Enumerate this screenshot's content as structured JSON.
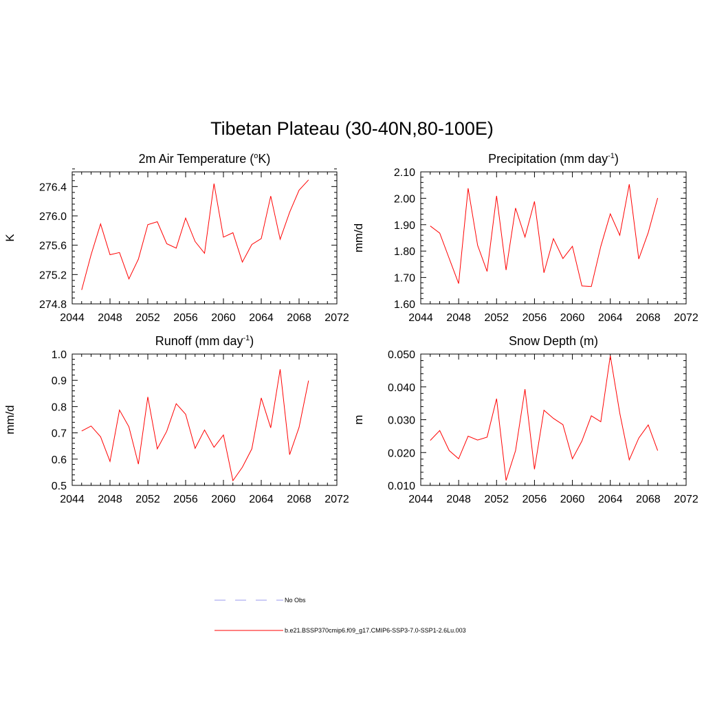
{
  "figure": {
    "title": "Tibetan Plateau (30-40N,80-100E)"
  },
  "chart_data": [
    {
      "type": "line",
      "title": "2m Air Temperature (",
      "title_sup": "o",
      "title_after": "K)",
      "ylabel": "K",
      "xlim": [
        2044,
        2072
      ],
      "ylim": [
        274.8,
        276.6
      ],
      "xticks": [
        2044,
        2048,
        2052,
        2056,
        2060,
        2064,
        2068,
        2072
      ],
      "yticks": [
        274.8,
        275.2,
        275.6,
        276.0,
        276.4
      ],
      "ytick_labels": [
        "274.8",
        "275.2",
        "275.6",
        "276.0",
        "276.4"
      ],
      "x": [
        2045,
        2046,
        2047,
        2048,
        2049,
        2050,
        2051,
        2052,
        2053,
        2054,
        2055,
        2056,
        2057,
        2058,
        2059,
        2060,
        2061,
        2062,
        2063,
        2064,
        2065,
        2066,
        2067,
        2068,
        2069
      ],
      "series": [
        {
          "color": "#ff0000",
          "values": [
            274.99,
            275.47,
            275.89,
            275.47,
            275.5,
            275.14,
            275.41,
            275.88,
            275.92,
            275.62,
            275.56,
            275.97,
            275.65,
            275.49,
            276.44,
            275.71,
            275.77,
            275.37,
            275.61,
            275.69,
            276.27,
            275.68,
            276.05,
            276.35,
            276.49
          ]
        }
      ]
    },
    {
      "type": "line",
      "title": "Precipitation (mm day",
      "title_sup": "-1",
      "title_after": ")",
      "ylabel": "mm/d",
      "xlim": [
        2044,
        2072
      ],
      "ylim": [
        1.6,
        2.1
      ],
      "xticks": [
        2044,
        2048,
        2052,
        2056,
        2060,
        2064,
        2068,
        2072
      ],
      "yticks": [
        1.6,
        1.7,
        1.8,
        1.9,
        2.0,
        2.1
      ],
      "ytick_labels": [
        "1.60",
        "1.70",
        "1.80",
        "1.90",
        "2.00",
        "2.10"
      ],
      "x": [
        2045,
        2046,
        2047,
        2048,
        2049,
        2050,
        2051,
        2052,
        2053,
        2054,
        2055,
        2056,
        2057,
        2058,
        2059,
        2060,
        2061,
        2062,
        2063,
        2064,
        2065,
        2066,
        2067,
        2068,
        2069
      ],
      "series": [
        {
          "color": "#ff0000",
          "values": [
            1.895,
            1.868,
            1.772,
            1.677,
            2.038,
            1.822,
            1.723,
            2.009,
            1.728,
            1.963,
            1.853,
            1.988,
            1.718,
            1.847,
            1.772,
            1.818,
            1.668,
            1.666,
            1.818,
            1.941,
            1.86,
            2.053,
            1.77,
            1.87,
            2.001
          ]
        }
      ]
    },
    {
      "type": "line",
      "title": "Runoff (mm day",
      "title_sup": "-1",
      "title_after": ")",
      "ylabel": "mm/d",
      "xlim": [
        2044,
        2072
      ],
      "ylim": [
        0.5,
        1.0
      ],
      "xticks": [
        2044,
        2048,
        2052,
        2056,
        2060,
        2064,
        2068,
        2072
      ],
      "yticks": [
        0.5,
        0.6,
        0.7,
        0.8,
        0.9,
        1.0
      ],
      "ytick_labels": [
        "0.5",
        "0.6",
        "0.7",
        "0.8",
        "0.9",
        "1.0"
      ],
      "x": [
        2045,
        2046,
        2047,
        2048,
        2049,
        2050,
        2051,
        2052,
        2053,
        2054,
        2055,
        2056,
        2057,
        2058,
        2059,
        2060,
        2061,
        2062,
        2063,
        2064,
        2065,
        2066,
        2067,
        2068,
        2069
      ],
      "series": [
        {
          "color": "#ff0000",
          "values": [
            0.707,
            0.726,
            0.685,
            0.591,
            0.787,
            0.723,
            0.581,
            0.837,
            0.639,
            0.706,
            0.811,
            0.771,
            0.641,
            0.711,
            0.645,
            0.692,
            0.518,
            0.569,
            0.639,
            0.833,
            0.719,
            0.942,
            0.617,
            0.721,
            0.899
          ]
        }
      ]
    },
    {
      "type": "line",
      "title": "Snow Depth (m)",
      "title_sup": "",
      "title_after": "",
      "ylabel": "m",
      "xlim": [
        2044,
        2072
      ],
      "ylim": [
        0.01,
        0.05
      ],
      "xticks": [
        2044,
        2048,
        2052,
        2056,
        2060,
        2064,
        2068,
        2072
      ],
      "yticks": [
        0.01,
        0.02,
        0.03,
        0.04,
        0.05
      ],
      "ytick_labels": [
        "0.010",
        "0.020",
        "0.030",
        "0.040",
        "0.050"
      ],
      "x": [
        2045,
        2046,
        2047,
        2048,
        2049,
        2050,
        2051,
        2052,
        2053,
        2054,
        2055,
        2056,
        2057,
        2058,
        2059,
        2060,
        2061,
        2062,
        2063,
        2064,
        2065,
        2066,
        2067,
        2068,
        2069
      ],
      "series": [
        {
          "color": "#ff0000",
          "values": [
            0.0237,
            0.0267,
            0.0206,
            0.0181,
            0.025,
            0.0238,
            0.0247,
            0.0364,
            0.0115,
            0.0206,
            0.0393,
            0.0149,
            0.0329,
            0.0304,
            0.0285,
            0.0181,
            0.0235,
            0.0312,
            0.0294,
            0.0495,
            0.032,
            0.0178,
            0.0244,
            0.0284,
            0.0206
          ]
        }
      ]
    }
  ],
  "legend": {
    "items": [
      {
        "label": "No Obs",
        "color": "#9999ee",
        "dash": true
      },
      {
        "label": "b.e21.BSSP370cmip6.f09_g17.CMIP6-SSP3-7.0-SSP1-2.6Lu.003",
        "color": "#ff0000",
        "dash": false
      }
    ]
  }
}
